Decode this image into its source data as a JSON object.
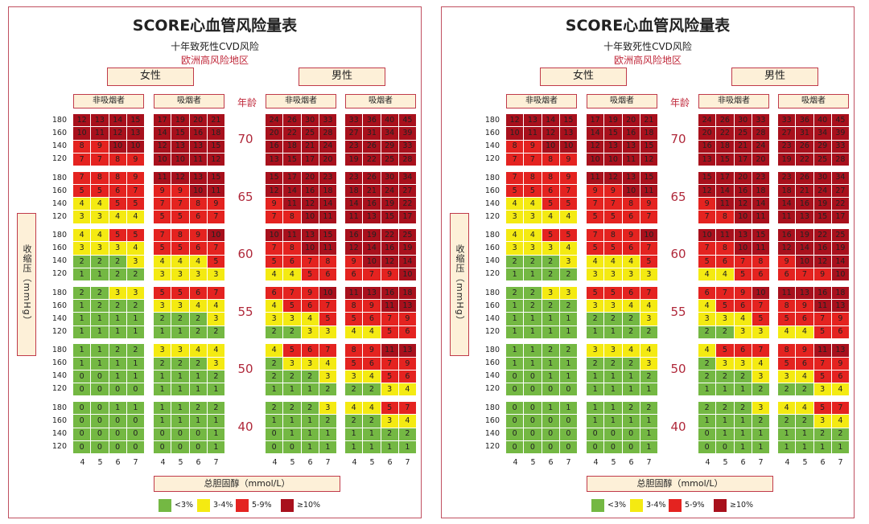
{
  "title": "SCORE心血管风险量表",
  "subtitle": "十年致死性CVD风险",
  "region": "欧洲高风险地区",
  "female_label": "女性",
  "male_label": "男性",
  "nonsmoker_label": "非吸烟者",
  "smoker_label": "吸烟者",
  "age_header": "年龄",
  "y_axis_label": "收缩压（mmHg）",
  "x_axis_label": "总胆固醇（mmol/L）",
  "bp_levels": [
    "180",
    "160",
    "140",
    "120"
  ],
  "cholesterol_levels": [
    "4",
    "5",
    "6",
    "7"
  ],
  "ages": [
    "70",
    "65",
    "60",
    "55",
    "50",
    "40"
  ],
  "legend": [
    {
      "label": "<3%",
      "color": "#74b843"
    },
    {
      "label": "3-4%",
      "color": "#f4ea12"
    },
    {
      "label": "5-9%",
      "color": "#e42320"
    },
    {
      "label": "≥10%",
      "color": "#a8101c"
    }
  ],
  "chart_data": {
    "type": "heatmap",
    "title": "SCORE心血管风险量表",
    "subtitle": "十年致死性CVD风险",
    "xlabel": "总胆固醇（mmol/L）",
    "ylabel": "收缩压（mmHg）",
    "x": [
      4,
      5,
      6,
      7
    ],
    "y": [
      180,
      160,
      140,
      120
    ],
    "unit": "%",
    "color_bins": [
      {
        "label": "<3%",
        "max": 2,
        "color": "#74b843"
      },
      {
        "label": "3-4%",
        "max": 4,
        "color": "#f4ea12"
      },
      {
        "label": "5-9%",
        "max": 9,
        "color": "#e42320"
      },
      {
        "label": "≥10%",
        "max": 999,
        "color": "#a8101c"
      }
    ],
    "panels": [
      {
        "sex": "女性",
        "smoking": "非吸烟者",
        "ages": [
          {
            "age": 70,
            "values": [
              [
                12,
                13,
                14,
                15
              ],
              [
                10,
                11,
                12,
                13
              ],
              [
                8,
                9,
                10,
                10
              ],
              [
                7,
                7,
                8,
                9
              ]
            ]
          },
          {
            "age": 65,
            "values": [
              [
                7,
                8,
                8,
                9
              ],
              [
                5,
                5,
                6,
                7
              ],
              [
                4,
                4,
                5,
                5
              ],
              [
                3,
                3,
                4,
                4
              ]
            ]
          },
          {
            "age": 60,
            "values": [
              [
                4,
                4,
                5,
                5
              ],
              [
                3,
                3,
                3,
                4
              ],
              [
                2,
                2,
                2,
                3
              ],
              [
                1,
                1,
                2,
                2
              ]
            ]
          },
          {
            "age": 55,
            "values": [
              [
                2,
                2,
                3,
                3
              ],
              [
                1,
                2,
                2,
                2
              ],
              [
                1,
                1,
                1,
                1
              ],
              [
                1,
                1,
                1,
                1
              ]
            ]
          },
          {
            "age": 50,
            "values": [
              [
                1,
                1,
                2,
                2
              ],
              [
                1,
                1,
                1,
                1
              ],
              [
                0,
                0,
                1,
                1
              ],
              [
                0,
                0,
                0,
                0
              ]
            ]
          },
          {
            "age": 40,
            "values": [
              [
                0,
                0,
                1,
                1
              ],
              [
                0,
                0,
                0,
                0
              ],
              [
                0,
                0,
                0,
                0
              ],
              [
                0,
                0,
                0,
                0
              ]
            ]
          }
        ]
      },
      {
        "sex": "女性",
        "smoking": "吸烟者",
        "ages": [
          {
            "age": 70,
            "values": [
              [
                17,
                19,
                20,
                21
              ],
              [
                14,
                15,
                16,
                18
              ],
              [
                12,
                13,
                13,
                15
              ],
              [
                10,
                10,
                11,
                12
              ]
            ]
          },
          {
            "age": 65,
            "values": [
              [
                11,
                12,
                13,
                15
              ],
              [
                9,
                9,
                10,
                11
              ],
              [
                7,
                7,
                8,
                9
              ],
              [
                5,
                5,
                6,
                7
              ]
            ]
          },
          {
            "age": 60,
            "values": [
              [
                7,
                8,
                9,
                10
              ],
              [
                5,
                5,
                6,
                7
              ],
              [
                4,
                4,
                4,
                5
              ],
              [
                3,
                3,
                3,
                3
              ]
            ]
          },
          {
            "age": 55,
            "values": [
              [
                5,
                5,
                6,
                7
              ],
              [
                3,
                3,
                4,
                4
              ],
              [
                2,
                2,
                2,
                3
              ],
              [
                1,
                1,
                2,
                2
              ]
            ]
          },
          {
            "age": 50,
            "values": [
              [
                3,
                3,
                4,
                4
              ],
              [
                2,
                2,
                2,
                3
              ],
              [
                1,
                1,
                1,
                2
              ],
              [
                1,
                1,
                1,
                1
              ]
            ]
          },
          {
            "age": 40,
            "values": [
              [
                1,
                1,
                2,
                2
              ],
              [
                1,
                1,
                1,
                1
              ],
              [
                0,
                0,
                0,
                1
              ],
              [
                0,
                0,
                0,
                1
              ]
            ]
          }
        ]
      },
      {
        "sex": "男性",
        "smoking": "非吸烟者",
        "ages": [
          {
            "age": 70,
            "values": [
              [
                24,
                26,
                30,
                33
              ],
              [
                20,
                22,
                25,
                28
              ],
              [
                16,
                18,
                21,
                24
              ],
              [
                13,
                15,
                17,
                20
              ]
            ]
          },
          {
            "age": 65,
            "values": [
              [
                15,
                17,
                20,
                23
              ],
              [
                12,
                14,
                16,
                18
              ],
              [
                9,
                11,
                12,
                14
              ],
              [
                7,
                8,
                10,
                11
              ]
            ]
          },
          {
            "age": 60,
            "values": [
              [
                10,
                11,
                13,
                15
              ],
              [
                7,
                8,
                10,
                11
              ],
              [
                5,
                6,
                7,
                8
              ],
              [
                4,
                4,
                5,
                6
              ]
            ]
          },
          {
            "age": 55,
            "values": [
              [
                6,
                7,
                9,
                10
              ],
              [
                4,
                5,
                6,
                7
              ],
              [
                3,
                3,
                4,
                5
              ],
              [
                2,
                2,
                3,
                3
              ]
            ]
          },
          {
            "age": 50,
            "values": [
              [
                4,
                5,
                6,
                7
              ],
              [
                2,
                3,
                3,
                4
              ],
              [
                2,
                2,
                2,
                3
              ],
              [
                1,
                1,
                1,
                2
              ]
            ]
          },
          {
            "age": 40,
            "values": [
              [
                2,
                2,
                2,
                3
              ],
              [
                1,
                1,
                1,
                2
              ],
              [
                0,
                1,
                1,
                1
              ],
              [
                0,
                0,
                1,
                1
              ]
            ]
          }
        ]
      },
      {
        "sex": "男性",
        "smoking": "吸烟者",
        "ages": [
          {
            "age": 70,
            "values": [
              [
                33,
                36,
                40,
                45
              ],
              [
                27,
                31,
                34,
                39
              ],
              [
                23,
                26,
                29,
                33
              ],
              [
                19,
                22,
                25,
                28
              ]
            ]
          },
          {
            "age": 65,
            "values": [
              [
                23,
                26,
                30,
                34
              ],
              [
                18,
                21,
                24,
                27
              ],
              [
                14,
                16,
                19,
                22
              ],
              [
                11,
                13,
                15,
                17
              ]
            ]
          },
          {
            "age": 60,
            "values": [
              [
                16,
                19,
                22,
                25
              ],
              [
                12,
                14,
                16,
                19
              ],
              [
                9,
                10,
                12,
                14
              ],
              [
                6,
                7,
                9,
                10
              ]
            ]
          },
          {
            "age": 55,
            "values": [
              [
                11,
                13,
                16,
                18
              ],
              [
                8,
                9,
                11,
                13
              ],
              [
                5,
                6,
                7,
                9
              ],
              [
                4,
                4,
                5,
                6
              ]
            ]
          },
          {
            "age": 50,
            "values": [
              [
                8,
                9,
                11,
                13
              ],
              [
                5,
                6,
                7,
                9
              ],
              [
                3,
                4,
                5,
                6
              ],
              [
                2,
                2,
                3,
                4
              ]
            ]
          },
          {
            "age": 40,
            "values": [
              [
                4,
                4,
                5,
                7
              ],
              [
                2,
                2,
                3,
                4
              ],
              [
                1,
                1,
                2,
                2
              ],
              [
                1,
                1,
                1,
                1
              ]
            ]
          }
        ]
      }
    ]
  }
}
